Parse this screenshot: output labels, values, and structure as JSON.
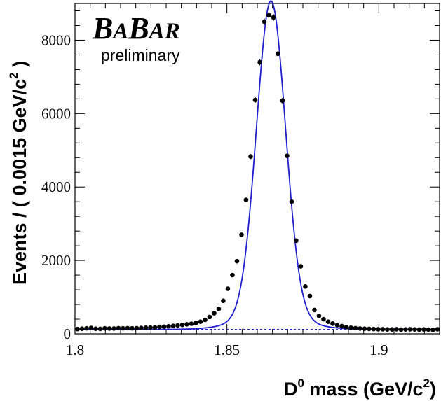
{
  "chart_data": {
    "type": "scatter",
    "title": "",
    "logo": {
      "parts": [
        "B",
        "A",
        "B",
        "A",
        "R"
      ],
      "subtitle": "preliminary"
    },
    "xlabel": {
      "main": "D",
      "sup": "0",
      "rest": " mass (GeV/c",
      "sup2": "2",
      "end": ")"
    },
    "ylabel": {
      "main": "Events / ( 0.0015 GeV/c",
      "sup": "2",
      "end": " )"
    },
    "xlim": [
      1.8,
      1.92
    ],
    "ylim": [
      0,
      9000
    ],
    "x_ticks": [
      {
        "value": 1.8,
        "label": "1.8"
      },
      {
        "value": 1.85,
        "label": "1.85"
      },
      {
        "value": 1.9,
        "label": "1.9"
      }
    ],
    "y_ticks": [
      {
        "value": 0,
        "label": "0"
      },
      {
        "value": 2000,
        "label": "2000"
      },
      {
        "value": 4000,
        "label": "4000"
      },
      {
        "value": 6000,
        "label": "6000"
      },
      {
        "value": 8000,
        "label": "8000"
      }
    ],
    "series": [
      {
        "kind": "data-points",
        "color": "#000000",
        "x": [
          1.8008,
          1.8023,
          1.8038,
          1.8053,
          1.8068,
          1.8083,
          1.8098,
          1.8113,
          1.8128,
          1.8143,
          1.8158,
          1.8173,
          1.8188,
          1.8203,
          1.8218,
          1.8233,
          1.8248,
          1.8263,
          1.8278,
          1.8293,
          1.8308,
          1.8323,
          1.8338,
          1.8353,
          1.8368,
          1.8383,
          1.8398,
          1.8413,
          1.8428,
          1.8443,
          1.8458,
          1.8473,
          1.8488,
          1.8503,
          1.8518,
          1.8533,
          1.8548,
          1.8563,
          1.8578,
          1.8593,
          1.8608,
          1.8623,
          1.8638,
          1.8653,
          1.8668,
          1.8683,
          1.8698,
          1.8713,
          1.8728,
          1.8743,
          1.8758,
          1.8773,
          1.8788,
          1.8803,
          1.8818,
          1.8833,
          1.8848,
          1.8863,
          1.8878,
          1.8893,
          1.8908,
          1.8923,
          1.8938,
          1.8953,
          1.8968,
          1.8983,
          1.8998,
          1.9013,
          1.9028,
          1.9043,
          1.9058,
          1.9073,
          1.9088,
          1.9103,
          1.9118,
          1.9133,
          1.9148,
          1.9163,
          1.9178,
          1.9193
        ],
        "y": [
          130,
          140,
          150,
          160,
          140,
          135,
          150,
          145,
          145,
          155,
          150,
          155,
          150,
          155,
          160,
          165,
          170,
          175,
          190,
          195,
          205,
          215,
          230,
          245,
          260,
          275,
          300,
          330,
          380,
          460,
          560,
          680,
          900,
          1230,
          1600,
          1980,
          2700,
          3650,
          4830,
          6370,
          7400,
          8500,
          8680,
          8620,
          7630,
          6350,
          4850,
          3600,
          2540,
          1840,
          1290,
          1030,
          650,
          490,
          400,
          330,
          280,
          240,
          210,
          185,
          165,
          155,
          145,
          140,
          135,
          130,
          125,
          125,
          120,
          120,
          125,
          115,
          120,
          125,
          120,
          115,
          120,
          115,
          110,
          125
        ]
      },
      {
        "kind": "fit-curve",
        "color": "#1f1fd0",
        "mean": 1.8645,
        "sigma": 0.00475,
        "amplitude": 8600,
        "tail_sigma": 0.0105,
        "tail_amplitude": 350,
        "background": 120
      },
      {
        "kind": "background-dashed",
        "color": "#1f1fd0",
        "level": 120
      }
    ]
  }
}
